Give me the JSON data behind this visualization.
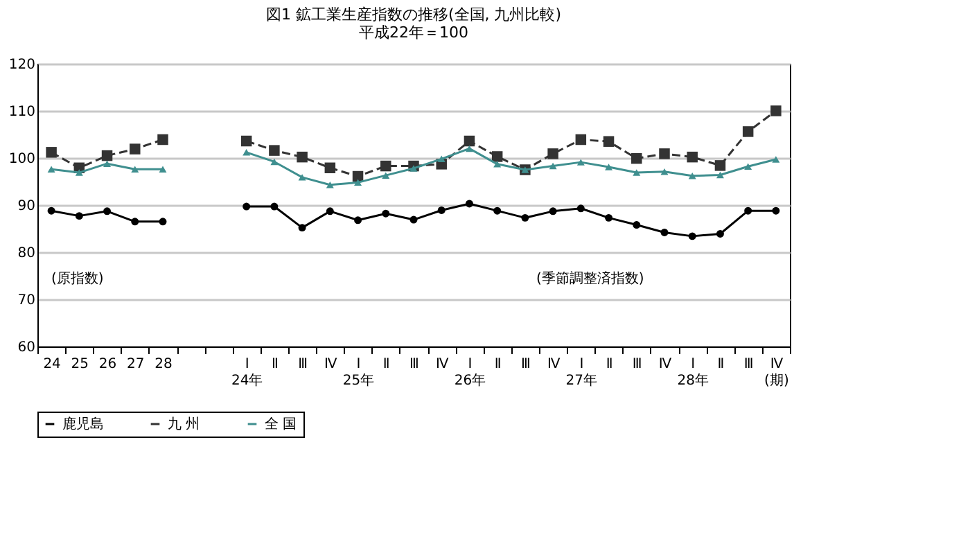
{
  "chart_data": {
    "type": "line",
    "title": "図1 鉱工業生産指数の推移(全国, 九州比較)",
    "subtitle": "平成22年＝100",
    "categories": [
      "24",
      "25",
      "26",
      "27",
      "28",
      null,
      null,
      "Ⅰ\n24年",
      "Ⅱ",
      "Ⅲ",
      "Ⅳ",
      "Ⅰ\n25年",
      "Ⅱ",
      "Ⅲ",
      "Ⅳ",
      "Ⅰ\n26年",
      "Ⅱ",
      "Ⅲ",
      "Ⅳ",
      "Ⅰ\n27年",
      "Ⅱ",
      "Ⅲ",
      "Ⅳ",
      "Ⅰ\n28年",
      "Ⅱ",
      "Ⅲ",
      "Ⅳ\n(期)"
    ],
    "series": [
      {
        "name": "鹿児島",
        "color": "#000000",
        "marker": "circle",
        "line_style": "solid",
        "values": [
          88.8,
          87.7,
          88.7,
          86.5,
          86.5,
          null,
          null,
          89.7,
          89.7,
          85.2,
          88.7,
          86.8,
          88.2,
          86.9,
          88.9,
          90.3,
          88.8,
          87.3,
          88.7,
          89.3,
          87.3,
          85.8,
          84.2,
          83.4,
          83.9,
          88.8,
          88.8
        ]
      },
      {
        "name": "九 州",
        "color": "#333333",
        "marker": "square",
        "line_style": "dashed",
        "values": [
          101.2,
          97.9,
          100.5,
          101.9,
          103.9,
          null,
          null,
          103.6,
          101.6,
          100.2,
          97.9,
          96.1,
          98.3,
          98.3,
          98.7,
          103.6,
          100.3,
          97.5,
          100.9,
          103.9,
          103.5,
          99.9,
          100.9,
          100.2,
          98.4,
          105.6,
          110.0
        ]
      },
      {
        "name": "全 国",
        "color": "#3f8f8f",
        "marker": "triangle",
        "line_style": "solid",
        "values": [
          97.6,
          96.9,
          98.8,
          97.6,
          97.6,
          null,
          null,
          101.2,
          99.2,
          95.9,
          94.3,
          94.8,
          96.3,
          97.8,
          99.8,
          102.0,
          98.7,
          97.5,
          98.3,
          99.1,
          98.1,
          96.9,
          97.1,
          96.2,
          96.4,
          98.2,
          99.7
        ]
      }
    ],
    "ylim": [
      60,
      120
    ],
    "yticks": [
      60,
      70,
      80,
      90,
      100,
      110,
      120
    ],
    "grid": "y",
    "legend": "bottom",
    "annotations": [
      "(原指数)",
      "(季節調整済指数)"
    ]
  }
}
